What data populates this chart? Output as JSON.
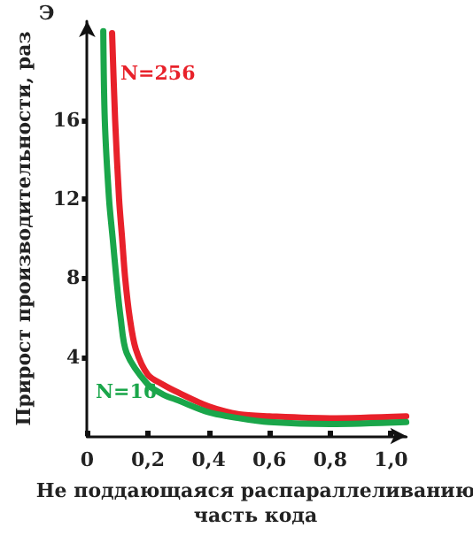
{
  "chart_data": {
    "type": "line",
    "xlabel": "Не поддающаяся распараллеливанию\nчасть кода",
    "ylabel": "Прирост производительности, раз",
    "annotations": [
      "Э"
    ],
    "xlim": [
      0,
      1.05
    ],
    "xticks": [
      0,
      {
        "value": 0.2,
        "label": "0,2"
      },
      {
        "value": 0.4,
        "label": "0,4"
      },
      {
        "value": 0.6,
        "label": "0,6"
      },
      {
        "value": 0.8,
        "label": "0,8"
      },
      {
        "value": 1.0,
        "label": "1,0"
      }
    ],
    "ylim": [
      0,
      21
    ],
    "yticks": [
      4,
      8,
      12,
      16
    ],
    "grid": false,
    "legend": false,
    "marker": "none",
    "line_style": "solid",
    "series": [
      {
        "name": "N=256",
        "color": "#e8212a",
        "x": [
          0.082,
          0.092,
          0.105,
          0.115,
          0.125,
          0.14,
          0.16,
          0.2,
          0.25,
          0.3,
          0.4,
          0.5,
          0.6,
          0.8,
          1.05
        ],
        "values": [
          20.4,
          16,
          12,
          10,
          8,
          6,
          4.4,
          3.1,
          2.6,
          2.2,
          1.5,
          1.1,
          1.0,
          0.9,
          1.0
        ]
      },
      {
        "name": "N=16",
        "color": "#1aa64a",
        "x": [
          0.053,
          0.058,
          0.072,
          0.084,
          0.096,
          0.11,
          0.13,
          0.2,
          0.25,
          0.3,
          0.4,
          0.5,
          0.6,
          0.8,
          1.05
        ],
        "values": [
          20.5,
          16,
          12,
          10,
          8,
          6,
          4.2,
          2.6,
          2.1,
          1.8,
          1.2,
          0.9,
          0.7,
          0.6,
          0.7
        ]
      }
    ]
  }
}
